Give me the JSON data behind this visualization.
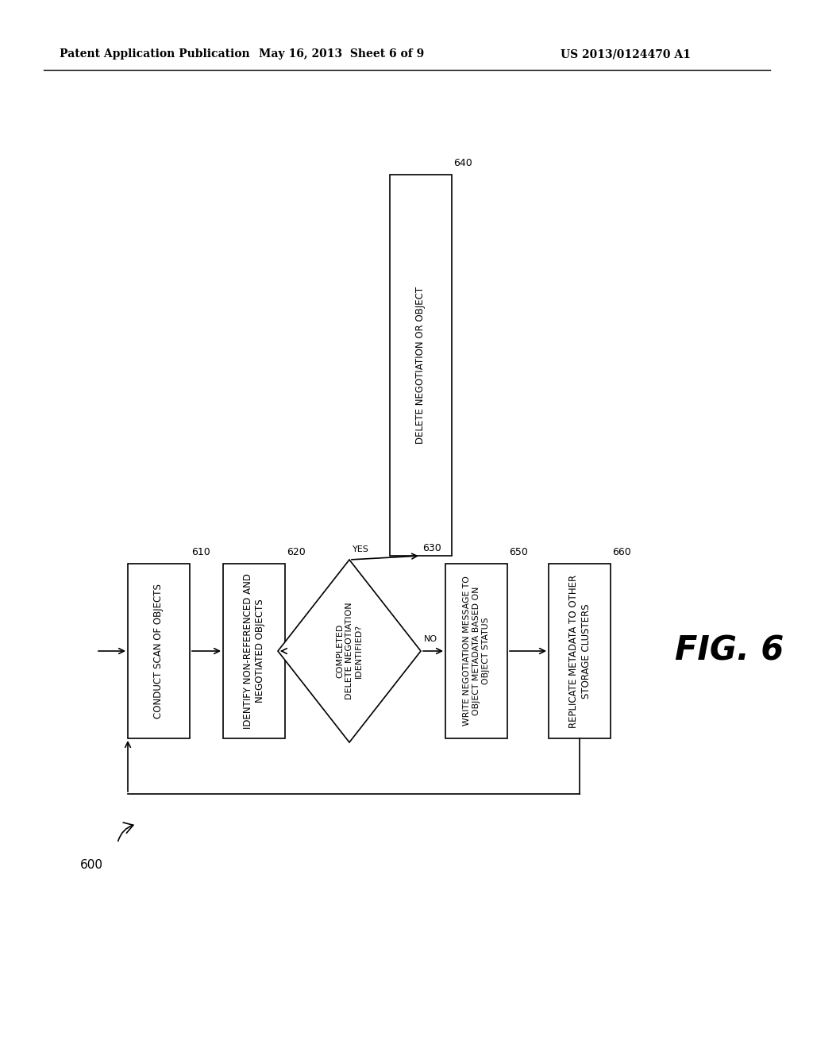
{
  "header_left": "Patent Application Publication",
  "header_mid": "May 16, 2013  Sheet 6 of 9",
  "header_right": "US 2013/0124470 A1",
  "fig_label": "FIG. 6",
  "fig_number": "600",
  "background": "#ffffff",
  "text_color": "#000000",
  "box610_label": "CONDUCT SCAN OF OBJECTS",
  "box620_label": "IDENTIFY NON-REFERENCED AND\nNEGOTIATED OBJECTS",
  "box630_label": "COMPLETED\nDELETE NEGOTIATION\nIDENTIFIED?",
  "box640_label": "DELETE NEGOTIATION OR OBJECT",
  "box650_label": "WRITE NEGOTIATION MESSAGE TO\nOBJECT METADATA BASED ON\nOBJECT STATUS",
  "box660_label": "REPLICATE METADATA TO OTHER\nSTORAGE CLUSTERS",
  "id610": "610",
  "id620": "620",
  "id630": "630",
  "id640": "640",
  "id650": "650",
  "id660": "660",
  "yes_label": "YES",
  "no_label": "NO"
}
